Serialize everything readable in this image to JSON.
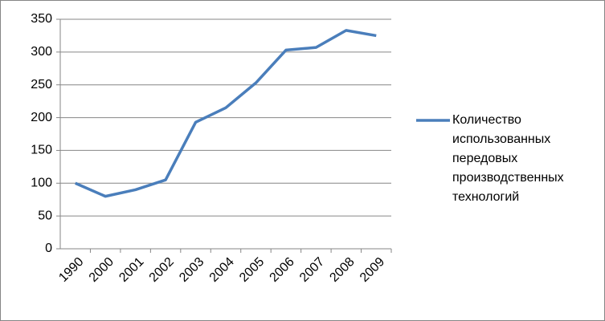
{
  "chart_data": {
    "type": "line",
    "categories": [
      "1990",
      "2000",
      "2001",
      "2002",
      "2003",
      "2004",
      "2005",
      "2006",
      "2007",
      "2008",
      "2009"
    ],
    "series": [
      {
        "name": "Количество использованных передовых производственных технологий",
        "color": "#4a7ebb",
        "values": [
          100,
          80,
          90,
          105,
          193,
          215,
          253,
          303,
          307,
          333,
          325
        ]
      }
    ],
    "ylim": [
      0,
      350
    ],
    "yticks": [
      0,
      50,
      100,
      150,
      200,
      250,
      300,
      350
    ],
    "grid": true
  }
}
